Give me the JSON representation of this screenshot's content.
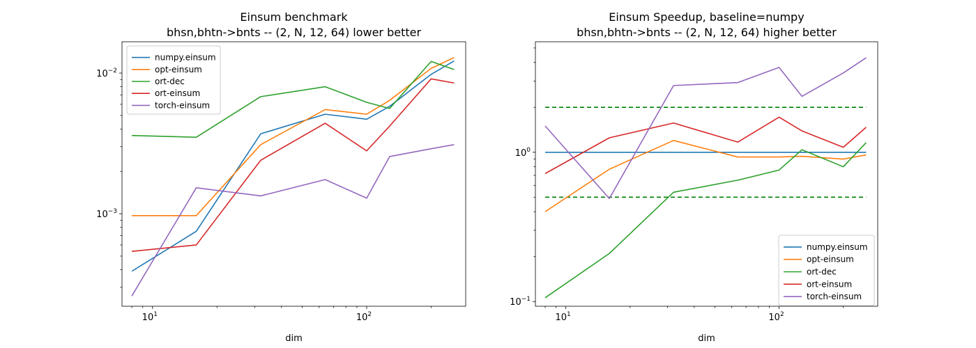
{
  "chart_data": [
    {
      "type": "line",
      "title": "Einsum benchmark",
      "subtitle": "bhsn,bhtn->bnts -- (2, N, 12, 64) lower better",
      "xlabel": "dim",
      "ylabel": "",
      "xscale": "log",
      "yscale": "log",
      "xlim": [
        7.2,
        290
      ],
      "ylim": [
        0.00022,
        0.0167
      ],
      "xticks": [
        {
          "value": 10,
          "base": "10",
          "exp": "1"
        },
        {
          "value": 100,
          "base": "10",
          "exp": "2"
        }
      ],
      "yticks": [
        {
          "value": 0.001,
          "base": "10",
          "exp": "−3"
        },
        {
          "value": 0.01,
          "base": "10",
          "exp": "−2"
        }
      ],
      "legend_position": "top-left",
      "x": [
        8,
        16,
        32,
        64,
        100,
        128,
        200,
        256
      ],
      "series": [
        {
          "name": "numpy.einsum",
          "color": "#1f77b4",
          "values": [
            0.00039,
            0.00075,
            0.0037,
            0.0051,
            0.0047,
            0.0058,
            0.0098,
            0.0122
          ]
        },
        {
          "name": "opt-einsum",
          "color": "#ff7f0e",
          "values": [
            0.00097,
            0.00097,
            0.0031,
            0.0055,
            0.0051,
            0.0064,
            0.0108,
            0.0129
          ]
        },
        {
          "name": "ort-dec",
          "color": "#2ca02c",
          "values": [
            0.0036,
            0.0035,
            0.0068,
            0.008,
            0.0062,
            0.0056,
            0.0121,
            0.0106
          ]
        },
        {
          "name": "ort-einsum",
          "color": "#d62728",
          "values": [
            0.00054,
            0.0006,
            0.0024,
            0.0044,
            0.0028,
            0.0042,
            0.0091,
            0.0085
          ]
        },
        {
          "name": "torch-einsum",
          "color": "#9467bd",
          "values": [
            0.00026,
            0.00153,
            0.00134,
            0.00175,
            0.00129,
            0.00255,
            0.0029,
            0.0031
          ]
        }
      ]
    },
    {
      "type": "line",
      "title": "Einsum Speedup, baseline=numpy",
      "subtitle": "bhsn,bhtn->bnts -- (2, N, 12, 64) higher better",
      "xlabel": "dim",
      "ylabel": "",
      "xscale": "log",
      "yscale": "log",
      "xlim": [
        7.2,
        290
      ],
      "ylim": [
        0.093,
        5.5
      ],
      "xticks": [
        {
          "value": 10,
          "base": "10",
          "exp": "1"
        },
        {
          "value": 100,
          "base": "10",
          "exp": "2"
        }
      ],
      "yticks": [
        {
          "value": 0.1,
          "base": "10",
          "exp": "−1"
        },
        {
          "value": 1,
          "base": "10",
          "exp": "0"
        }
      ],
      "legend_position": "lower-right",
      "x": [
        8,
        16,
        32,
        64,
        100,
        128,
        200,
        256
      ],
      "reference_lines": [
        {
          "value": 2,
          "color": "#008000",
          "style": "dashed"
        },
        {
          "value": 0.5,
          "color": "#008000",
          "style": "dashed"
        }
      ],
      "series": [
        {
          "name": "numpy.einsum",
          "color": "#1f77b4",
          "values": [
            1,
            1,
            1,
            1,
            1,
            1,
            1,
            1
          ]
        },
        {
          "name": "opt-einsum",
          "color": "#ff7f0e",
          "values": [
            0.4,
            0.77,
            1.2,
            0.93,
            0.93,
            0.94,
            0.9,
            0.96
          ]
        },
        {
          "name": "ort-dec",
          "color": "#2ca02c",
          "values": [
            0.106,
            0.21,
            0.54,
            0.65,
            0.76,
            1.04,
            0.8,
            1.16
          ]
        },
        {
          "name": "ort-einsum",
          "color": "#d62728",
          "values": [
            0.72,
            1.25,
            1.57,
            1.17,
            1.72,
            1.39,
            1.08,
            1.47
          ]
        },
        {
          "name": "torch-einsum",
          "color": "#9467bd",
          "values": [
            1.5,
            0.49,
            2.8,
            2.93,
            3.7,
            2.37,
            3.4,
            4.3
          ]
        }
      ]
    }
  ]
}
